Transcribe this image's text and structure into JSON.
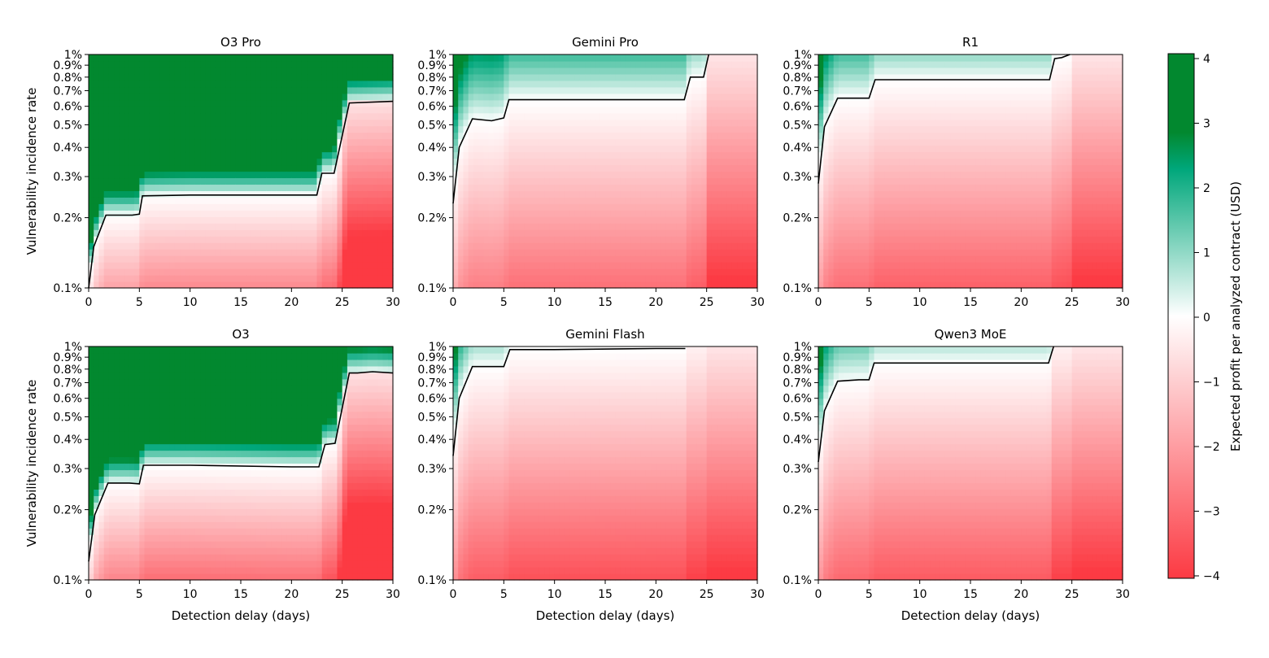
{
  "chart_data": [
    {
      "type": "heatmap",
      "title": "O3 Pro",
      "xlabel": "",
      "ylabel": "Vulnerability incidence rate",
      "boundary": {
        "x": [
          0,
          0.5,
          1.7,
          4.3,
          5.0,
          5.3,
          10,
          20,
          22.5,
          23.0,
          24.2,
          25.7,
          30
        ],
        "y": [
          0.1,
          0.15,
          0.205,
          0.205,
          0.207,
          0.248,
          0.25,
          0.25,
          0.25,
          0.31,
          0.31,
          0.62,
          0.63
        ]
      }
    },
    {
      "type": "heatmap",
      "title": "Gemini Pro",
      "xlabel": "",
      "ylabel": "",
      "boundary": {
        "x": [
          0,
          0.6,
          1.9,
          3.8,
          5.0,
          5.5,
          10,
          20,
          22.8,
          23.4,
          24.7,
          25.2
        ],
        "y": [
          0.23,
          0.4,
          0.53,
          0.52,
          0.535,
          0.64,
          0.64,
          0.64,
          0.64,
          0.8,
          0.8,
          1.0
        ]
      }
    },
    {
      "type": "heatmap",
      "title": "R1",
      "xlabel": "",
      "ylabel": "",
      "boundary": {
        "x": [
          0,
          0.6,
          1.9,
          3.5,
          5.0,
          5.6,
          10,
          20,
          22.8,
          23.3,
          24.0,
          24.8
        ],
        "y": [
          0.28,
          0.49,
          0.65,
          0.65,
          0.65,
          0.78,
          0.78,
          0.78,
          0.78,
          0.96,
          0.97,
          1.0
        ]
      }
    },
    {
      "type": "heatmap",
      "title": "O3",
      "xlabel": "Detection delay (days)",
      "ylabel": "Vulnerability incidence rate",
      "boundary": {
        "x": [
          0,
          0.6,
          1.9,
          4.0,
          5.0,
          5.4,
          10,
          20,
          22.7,
          23.3,
          24.3,
          25.7,
          26.5,
          28,
          30
        ],
        "y": [
          0.12,
          0.19,
          0.26,
          0.26,
          0.258,
          0.31,
          0.31,
          0.305,
          0.305,
          0.38,
          0.385,
          0.77,
          0.77,
          0.78,
          0.77
        ]
      }
    },
    {
      "type": "heatmap",
      "title": "Gemini Flash",
      "xlabel": "Detection delay (days)",
      "ylabel": "",
      "boundary": {
        "x": [
          0,
          0.6,
          1.9,
          4.0,
          5.0,
          5.6,
          10,
          20,
          22.9
        ],
        "y": [
          0.34,
          0.6,
          0.82,
          0.82,
          0.82,
          0.97,
          0.97,
          0.98,
          0.98
        ]
      }
    },
    {
      "type": "heatmap",
      "title": "Qwen3 MoE",
      "xlabel": "Detection delay (days)",
      "ylabel": "",
      "boundary": {
        "x": [
          0,
          0.6,
          1.9,
          4.0,
          5.0,
          5.5,
          10,
          20,
          22.7,
          23.2
        ],
        "y": [
          0.32,
          0.53,
          0.71,
          0.72,
          0.72,
          0.85,
          0.85,
          0.85,
          0.85,
          1.0
        ]
      }
    }
  ],
  "shared": {
    "xlim": [
      0,
      30
    ],
    "ylim": [
      0.1,
      1.0
    ],
    "yscale": "log",
    "x_ticks": [
      0,
      5,
      10,
      15,
      20,
      25,
      30
    ],
    "x_tick_labels": [
      "0",
      "5",
      "10",
      "15",
      "20",
      "25",
      "30"
    ],
    "y_ticks": [
      0.1,
      0.2,
      0.3,
      0.4,
      0.5,
      0.6,
      0.7,
      0.8,
      0.9,
      1.0
    ],
    "y_tick_labels": [
      "0.1%",
      "0.2%",
      "0.3%",
      "0.4%",
      "0.5%",
      "0.6%",
      "0.7%",
      "0.8%",
      "0.9%",
      "1%"
    ]
  },
  "colorbar": {
    "label": "Expected profit per analyzed contract (USD)",
    "range": [
      -4,
      4
    ],
    "ticks": [
      4,
      3,
      2,
      1,
      0,
      -1,
      -2,
      -3,
      -4
    ],
    "tick_labels": [
      "4",
      "3",
      "2",
      "1",
      "0",
      "−1",
      "−2",
      "−3",
      "−4"
    ],
    "colors": {
      "negative": "#fc3a43",
      "zero": "#ffffff",
      "positive_mid": "#00a77b",
      "positive_max": "#02882f"
    }
  }
}
